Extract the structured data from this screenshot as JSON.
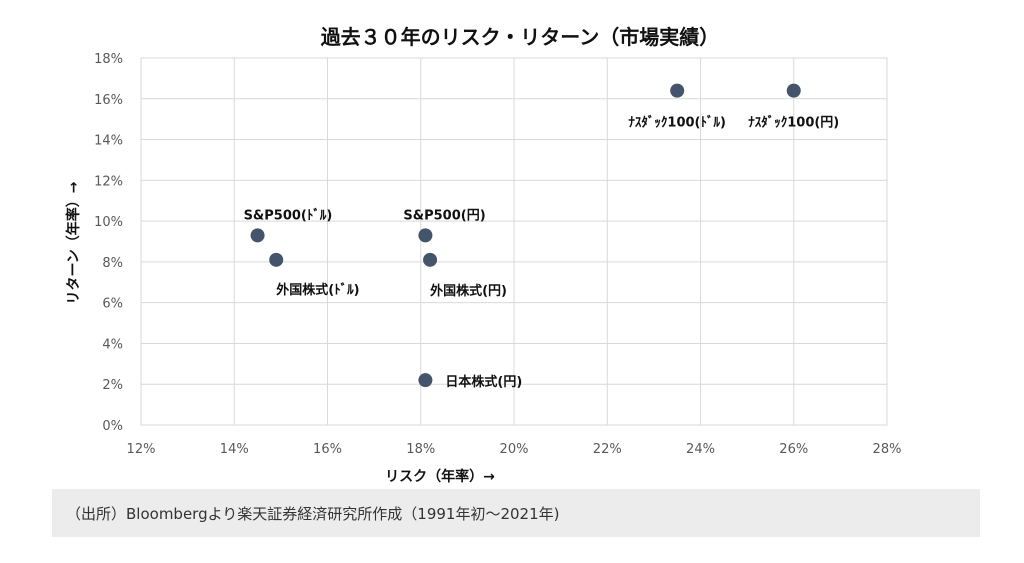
{
  "chart_data": {
    "type": "scatter",
    "title": "過去３０年のリスク・リターン（市場実績）",
    "xlabel": "リスク（年率）→",
    "ylabel": "リターン（年率）→",
    "xlim": [
      12,
      28
    ],
    "ylim": [
      0,
      18
    ],
    "x_ticks": [
      "12%",
      "14%",
      "16%",
      "18%",
      "20%",
      "22%",
      "24%",
      "26%",
      "28%"
    ],
    "y_ticks": [
      "0%",
      "2%",
      "4%",
      "6%",
      "8%",
      "10%",
      "12%",
      "14%",
      "16%",
      "18%"
    ],
    "grid": true,
    "marker_color": "#44546a",
    "points": [
      {
        "label": "S&P500(ﾄﾞﾙ)",
        "x": 14.5,
        "y": 9.3
      },
      {
        "label": "外国株式(ﾄﾞﾙ)",
        "x": 14.9,
        "y": 8.1
      },
      {
        "label": "S&P500(円)",
        "x": 18.1,
        "y": 9.3
      },
      {
        "label": "外国株式(円)",
        "x": 18.2,
        "y": 8.1
      },
      {
        "label": "日本株式(円)",
        "x": 18.1,
        "y": 2.2
      },
      {
        "label": "ﾅｽﾀﾞｯｸ100(ﾄﾞﾙ)",
        "x": 23.5,
        "y": 16.4
      },
      {
        "label": "ﾅｽﾀﾞｯｸ100(円)",
        "x": 26.0,
        "y": 16.4
      }
    ]
  },
  "source_note": "（出所）Bloombergより楽天証券経済研究所作成（1991年初〜2021年)"
}
